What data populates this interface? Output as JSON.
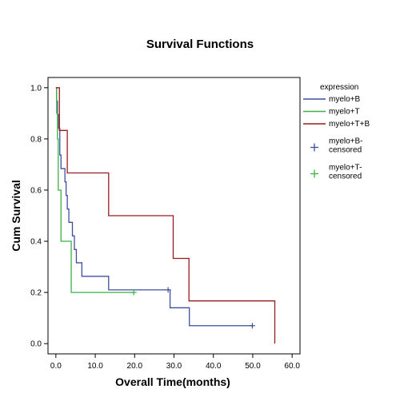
{
  "chart_data": {
    "type": "line",
    "step": true,
    "title": "Survival Functions",
    "xlabel": "Overall Time(months)",
    "ylabel": "Cum Survival",
    "xlim": [
      -2,
      62
    ],
    "ylim": [
      -0.04,
      1.04
    ],
    "x_ticks": [
      0,
      10,
      20,
      30,
      40,
      50,
      60
    ],
    "x_tick_labels": [
      "0.0",
      "10.0",
      "20.0",
      "30.0",
      "40.0",
      "50.0",
      "60.0"
    ],
    "y_ticks": [
      0,
      0.2,
      0.4,
      0.6,
      0.8,
      1.0
    ],
    "y_tick_labels": [
      "0.0",
      "0.2",
      "0.4",
      "0.6",
      "0.8",
      "1.0"
    ],
    "grid": false,
    "legend": {
      "position": "right",
      "title": "expression",
      "line_entries": [
        {
          "label": "myelo+B",
          "color": "#3f4ea1"
        },
        {
          "label": "myelo+T",
          "color": "#3cb045"
        },
        {
          "label": "myelo+T+B",
          "color": "#9a1b1e"
        }
      ],
      "censor_entries": [
        {
          "label_lines": [
            "myelo+B-",
            "censored"
          ],
          "color": "#3f4ea1"
        },
        {
          "label_lines": [
            "myelo+T-",
            "censored"
          ],
          "color": "#3cb045"
        }
      ]
    },
    "series": [
      {
        "name": "myelo+B",
        "color": "#3f4ea1",
        "x": [
          0,
          0.2,
          0.4,
          0.7,
          1.0,
          1.3,
          2.3,
          2.6,
          2.9,
          3.3,
          4.2,
          4.7,
          5.2,
          6.6,
          13.4,
          28.5,
          29.0,
          33.9,
          49.9
        ],
        "y": [
          1.0,
          0.947,
          0.895,
          0.842,
          0.737,
          0.684,
          0.632,
          0.579,
          0.526,
          0.474,
          0.421,
          0.368,
          0.316,
          0.263,
          0.21,
          0.21,
          0.14,
          0.07,
          0.07
        ],
        "censored": [
          {
            "x": 28.5,
            "y": 0.21
          },
          {
            "x": 49.9,
            "y": 0.07
          }
        ]
      },
      {
        "name": "myelo+T",
        "color": "#3cb045",
        "x": [
          0,
          0.2,
          0.4,
          0.6,
          1.3,
          3.9,
          19.8
        ],
        "y": [
          1.0,
          0.9,
          0.8,
          0.6,
          0.4,
          0.2,
          0.2
        ],
        "censored": [
          {
            "x": 19.8,
            "y": 0.2
          }
        ]
      },
      {
        "name": "myelo+T+B",
        "color": "#9a1b1e",
        "x": [
          0,
          0.9,
          2.9,
          13.4,
          29.8,
          33.8,
          55.6
        ],
        "y": [
          1.0,
          0.833,
          0.667,
          0.5,
          0.333,
          0.167,
          0.0
        ],
        "censored": []
      }
    ]
  }
}
